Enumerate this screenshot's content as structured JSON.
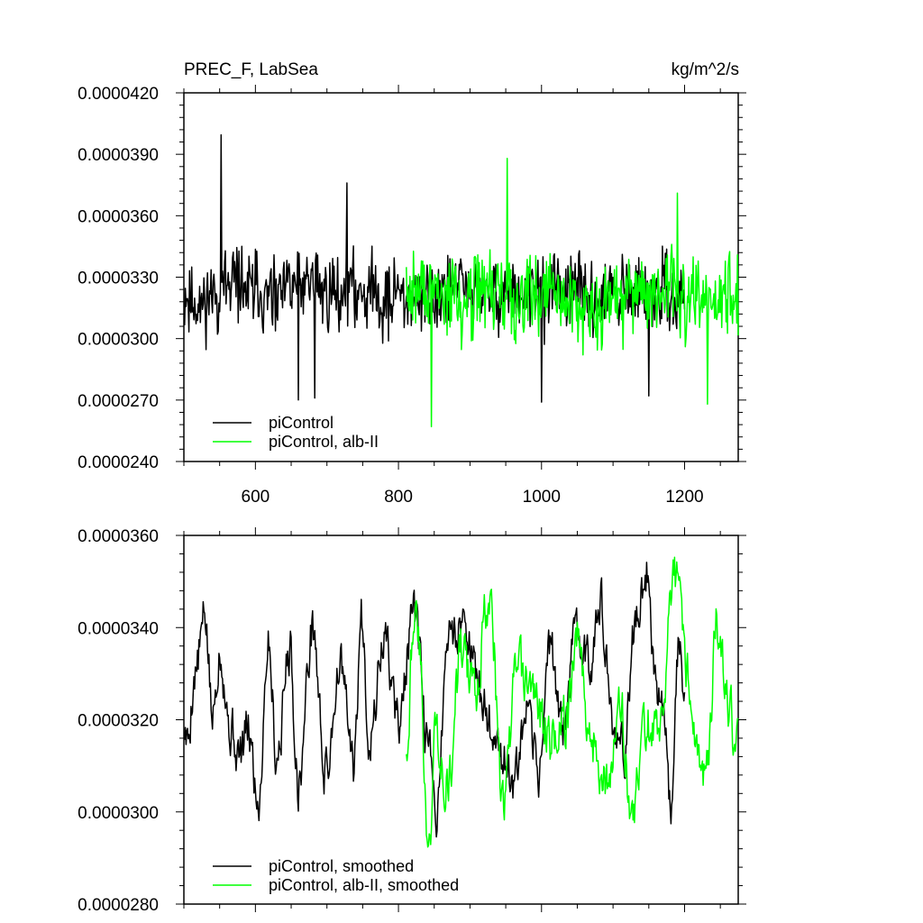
{
  "chart_data": [
    {
      "type": "line",
      "title": "PREC_F, LabSea",
      "units": "kg/m^2/s",
      "xlim": [
        500,
        1275
      ],
      "ylim": [
        2.4e-05,
        4.2e-05
      ],
      "x_ticks": [
        600,
        800,
        1000,
        1200
      ],
      "x_tick_labels": [
        "600",
        "800",
        "1000",
        "1200"
      ],
      "y_ticks": [
        2.4e-05,
        2.7e-05,
        3e-05,
        3.3e-05,
        3.6e-05,
        3.9e-05,
        4.2e-05
      ],
      "y_tick_labels": [
        "0.0000240",
        "0.0000270",
        "0.0000300",
        "0.0000330",
        "0.0000360",
        "0.0000390",
        "0.0000420"
      ],
      "legend_position": "bottom-left",
      "series": [
        {
          "name": "piControl",
          "color": "#000000",
          "x_start": 501,
          "x_end": 1200,
          "n": 700,
          "mean": 3.22e-05,
          "noise": 1.6e-06,
          "seed": 11,
          "extremes": [
            {
              "x": 552,
              "y": 3.995e-05
            },
            {
              "x": 660,
              "y": 2.7e-05
            },
            {
              "x": 683,
              "y": 2.71e-05
            },
            {
              "x": 728,
              "y": 3.76e-05
            },
            {
              "x": 1000,
              "y": 2.69e-05
            },
            {
              "x": 1150,
              "y": 2.72e-05
            }
          ]
        },
        {
          "name": "piControl, alb-II",
          "color": "#00ff00",
          "x_start": 811,
          "x_end": 1275,
          "n": 465,
          "mean": 3.21e-05,
          "noise": 1.7e-06,
          "seed": 29,
          "extremes": [
            {
              "x": 846,
              "y": 2.57e-05
            },
            {
              "x": 952,
              "y": 3.88e-05
            },
            {
              "x": 1190,
              "y": 3.71e-05
            },
            {
              "x": 1232,
              "y": 2.68e-05
            }
          ]
        }
      ]
    },
    {
      "type": "line",
      "xlim": [
        500,
        1275
      ],
      "ylim": [
        2.8e-05,
        3.6e-05
      ],
      "x_ticks": [
        600,
        800,
        1000,
        1200
      ],
      "y_ticks": [
        2.8e-05,
        3e-05,
        3.2e-05,
        3.4e-05,
        3.6e-05
      ],
      "y_tick_labels": [
        "0.0000280",
        "0.0000300",
        "0.0000320",
        "0.0000340",
        "0.0000360"
      ],
      "legend_position": "bottom-left",
      "series": [
        {
          "name": "piControl, smoothed",
          "color": "#000000",
          "x_start": 501,
          "x_end": 1200,
          "anchors": [
            [
              501,
              3.18e-05
            ],
            [
              505,
              3.15e-05
            ],
            [
              515,
              3.3e-05
            ],
            [
              530,
              3.42e-05
            ],
            [
              540,
              3.2e-05
            ],
            [
              550,
              3.36e-05
            ],
            [
              565,
              3.18e-05
            ],
            [
              578,
              3.12e-05
            ],
            [
              590,
              3.18e-05
            ],
            [
              604,
              3.02e-05
            ],
            [
              618,
              3.38e-05
            ],
            [
              630,
              3.12e-05
            ],
            [
              648,
              3.36e-05
            ],
            [
              660,
              3.06e-05
            ],
            [
              680,
              3.4e-05
            ],
            [
              698,
              3.08e-05
            ],
            [
              718,
              3.32e-05
            ],
            [
              738,
              3.1e-05
            ],
            [
              748,
              3.42e-05
            ],
            [
              760,
              3.16e-05
            ],
            [
              780,
              3.38e-05
            ],
            [
              800,
              3.2e-05
            ],
            [
              822,
              3.43e-05
            ],
            [
              840,
              3.16e-05
            ],
            [
              852,
              3e-05
            ],
            [
              870,
              3.38e-05
            ],
            [
              893,
              3.42e-05
            ],
            [
              912,
              3.26e-05
            ],
            [
              930,
              3.18e-05
            ],
            [
              962,
              3.06e-05
            ],
            [
              980,
              3.2e-05
            ],
            [
              995,
              3.08e-05
            ],
            [
              1012,
              3.36e-05
            ],
            [
              1030,
              3.18e-05
            ],
            [
              1050,
              3.4e-05
            ],
            [
              1068,
              3.32e-05
            ],
            [
              1080,
              3.48e-05
            ],
            [
              1100,
              3.18e-05
            ],
            [
              1115,
              3.12e-05
            ],
            [
              1128,
              3.38e-05
            ],
            [
              1148,
              3.52e-05
            ],
            [
              1160,
              3.28e-05
            ],
            [
              1170,
              3.24e-05
            ],
            [
              1180,
              3.02e-05
            ],
            [
              1192,
              3.38e-05
            ],
            [
              1200,
              3.22e-05
            ]
          ],
          "noise": 4.5e-07,
          "seed": 5
        },
        {
          "name": "piControl, alb-II, smoothed",
          "color": "#00ff00",
          "x_start": 811,
          "x_end": 1275,
          "anchors": [
            [
              811,
              3.15e-05
            ],
            [
              822,
              3.45e-05
            ],
            [
              830,
              3.34e-05
            ],
            [
              842,
              2.9e-05
            ],
            [
              852,
              3.18e-05
            ],
            [
              870,
              3.06e-05
            ],
            [
              888,
              3.35e-05
            ],
            [
              905,
              3.26e-05
            ],
            [
              928,
              3.48e-05
            ],
            [
              946,
              3e-05
            ],
            [
              965,
              3.3e-05
            ],
            [
              990,
              3.26e-05
            ],
            [
              1012,
              3.15e-05
            ],
            [
              1035,
              3.2e-05
            ],
            [
              1050,
              3.38e-05
            ],
            [
              1070,
              3.16e-05
            ],
            [
              1090,
              3.06e-05
            ],
            [
              1110,
              3.22e-05
            ],
            [
              1128,
              2.98e-05
            ],
            [
              1145,
              3.2e-05
            ],
            [
              1160,
              3.16e-05
            ],
            [
              1190,
              3.51e-05
            ],
            [
              1205,
              3.3e-05
            ],
            [
              1220,
              3.12e-05
            ],
            [
              1232,
              3.08e-05
            ],
            [
              1244,
              3.42e-05
            ],
            [
              1260,
              3.22e-05
            ],
            [
              1275,
              3.12e-05
            ]
          ],
          "noise": 5e-07,
          "seed": 43
        }
      ]
    }
  ]
}
